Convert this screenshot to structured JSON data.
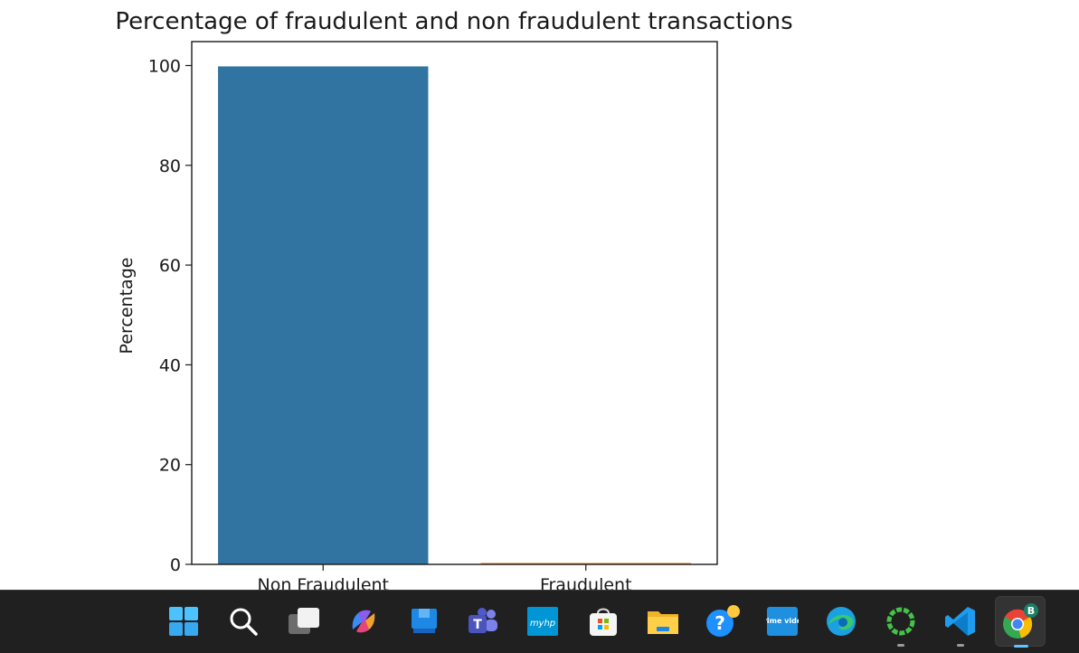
{
  "chart_data": {
    "type": "bar",
    "title": "Percentage of fraudulent and non fraudulent transactions",
    "xlabel": "",
    "ylabel": "Percentage",
    "categories": [
      "Non Fraudulent",
      "Fraudulent"
    ],
    "values": [
      99.83,
      0.17
    ],
    "colors": [
      "#3274a1",
      "#e1812c"
    ],
    "ylim": [
      0,
      104.8
    ],
    "yticks": [
      0,
      20,
      40,
      60,
      80,
      100
    ],
    "grid": false
  },
  "taskbar": {
    "items": [
      {
        "name": "start-icon"
      },
      {
        "name": "search-icon"
      },
      {
        "name": "task-view-icon"
      },
      {
        "name": "copilot-icon"
      },
      {
        "name": "app-icon"
      },
      {
        "name": "teams-icon"
      },
      {
        "name": "myhp-icon",
        "label": "myhp"
      },
      {
        "name": "store-icon"
      },
      {
        "name": "file-explorer-icon"
      },
      {
        "name": "help-icon"
      },
      {
        "name": "prime-video-icon",
        "label": "prime video"
      },
      {
        "name": "edge-icon"
      },
      {
        "name": "circle-app-icon"
      },
      {
        "name": "vscode-icon"
      },
      {
        "name": "chrome-icon",
        "badge": "B"
      }
    ]
  }
}
